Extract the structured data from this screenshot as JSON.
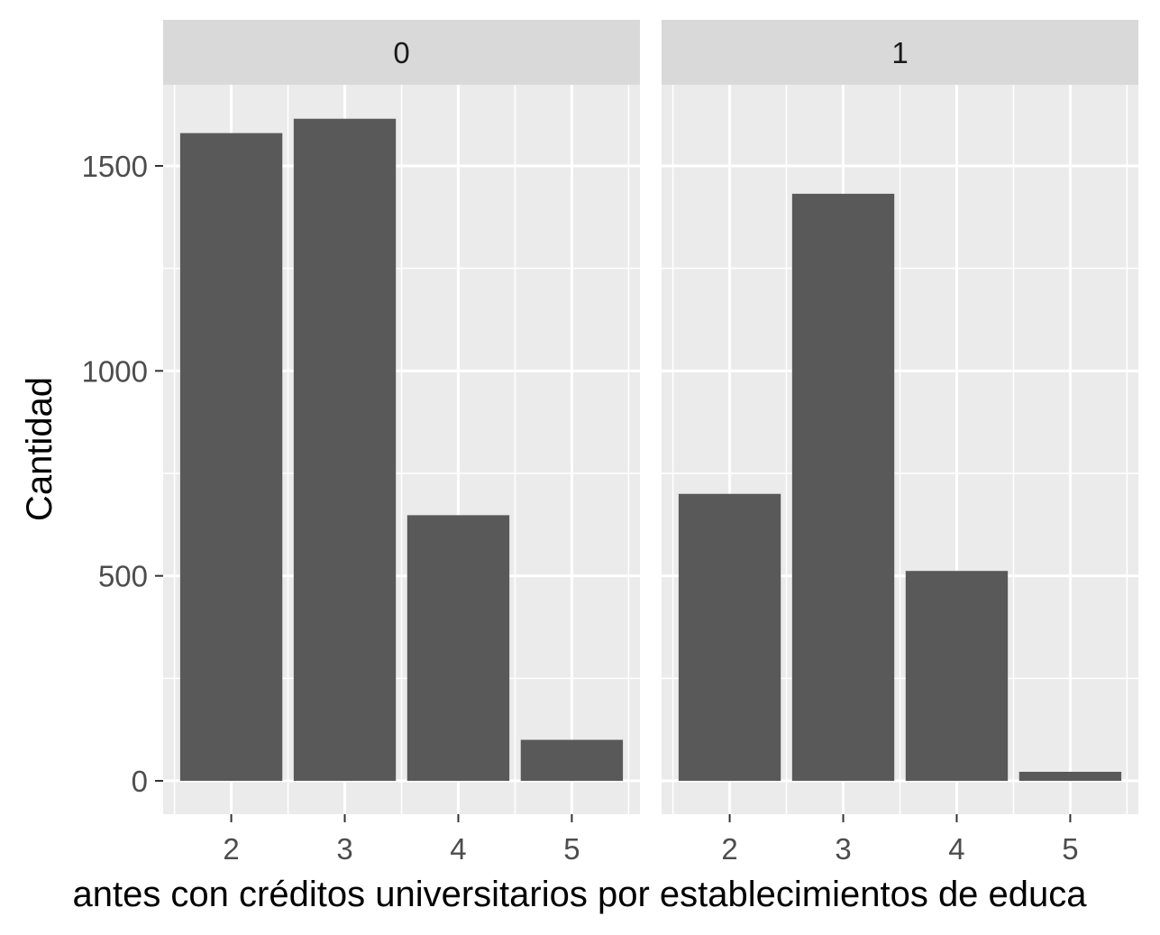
{
  "chart_data": {
    "type": "bar",
    "ylabel": "Cantidad",
    "xlabel": "antes con créditos universitarios por establecimientos de educa",
    "ylim": [
      -75,
      1780
    ],
    "yticks": [
      0,
      500,
      1000,
      1500
    ],
    "grid": true,
    "bar_color": "#595959",
    "panel_background": "#ebebeb",
    "strip_background": "#d9d9d9",
    "categories": [
      "2",
      "3",
      "4",
      "5"
    ],
    "panels": [
      {
        "label": "0",
        "values": [
          1580,
          1615,
          648,
          100
        ]
      },
      {
        "label": "1",
        "values": [
          700,
          1432,
          512,
          22
        ]
      }
    ]
  }
}
